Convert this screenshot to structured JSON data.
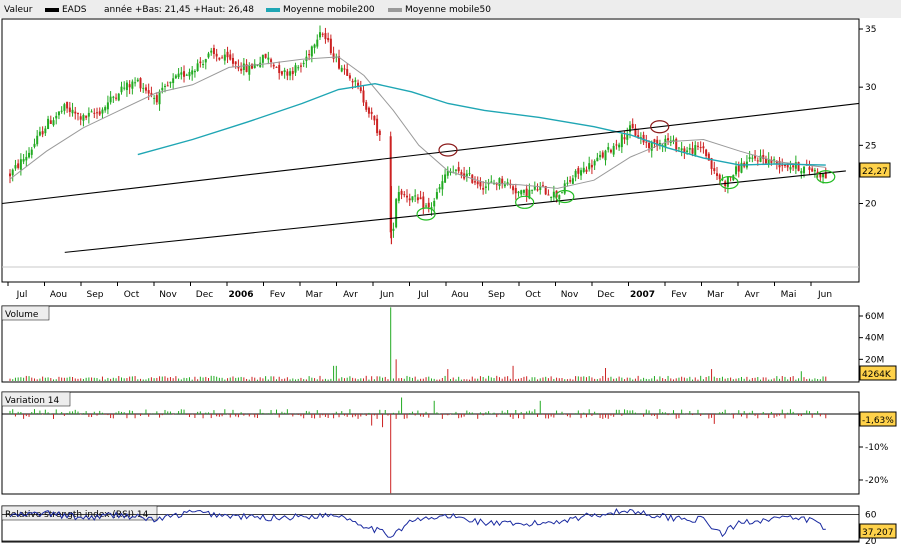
{
  "legend": {
    "title": "Valeur",
    "symbol": "EADS",
    "range_text": "année +Bas: 21,45 +Haut: 26,48",
    "ma200": "Moyenne mobile200",
    "ma50": "Moyenne mobile50"
  },
  "colors": {
    "up": "#22aa22",
    "down": "#cc2222",
    "ma200": "#1fa6b4",
    "ma50": "#9a9a9a",
    "channel": "#000000",
    "circle_red": "#8b1a1a",
    "circle_green": "#22bb22",
    "rsi": "#1a2aa0",
    "badge_fill": "#ffd24a"
  },
  "months": [
    {
      "label": "Jul",
      "bold": false
    },
    {
      "label": "Aou",
      "bold": false
    },
    {
      "label": "Sep",
      "bold": false
    },
    {
      "label": "Oct",
      "bold": false
    },
    {
      "label": "Nov",
      "bold": false
    },
    {
      "label": "Dec",
      "bold": false
    },
    {
      "label": "2006",
      "bold": true
    },
    {
      "label": "Fev",
      "bold": false
    },
    {
      "label": "Mar",
      "bold": false
    },
    {
      "label": "Avr",
      "bold": false
    },
    {
      "label": "Jun",
      "bold": false
    },
    {
      "label": "Jul",
      "bold": false
    },
    {
      "label": "Aou",
      "bold": false
    },
    {
      "label": "Sep",
      "bold": false
    },
    {
      "label": "Oct",
      "bold": false
    },
    {
      "label": "Nov",
      "bold": false
    },
    {
      "label": "Dec",
      "bold": false
    },
    {
      "label": "2007",
      "bold": true
    },
    {
      "label": "Fev",
      "bold": false
    },
    {
      "label": "Mar",
      "bold": false
    },
    {
      "label": "Avr",
      "bold": false
    },
    {
      "label": "Mai",
      "bold": false
    },
    {
      "label": "Jun",
      "bold": false
    }
  ],
  "chart_data": [
    {
      "type": "line",
      "title": "Valeur EADS",
      "series_names": [
        "EADS",
        "Moyenne mobile200",
        "Moyenne mobile50"
      ],
      "yticks": [
        "20",
        "25",
        "30",
        "35"
      ],
      "ylim": [
        15,
        36
      ],
      "last_value": "22,27",
      "price_anchors": [
        {
          "m": 0.0,
          "v": 22.5
        },
        {
          "m": 0.5,
          "v": 24.3
        },
        {
          "m": 1.0,
          "v": 26.8
        },
        {
          "m": 1.5,
          "v": 28.2
        },
        {
          "m": 2.0,
          "v": 27.3
        },
        {
          "m": 2.5,
          "v": 28.0
        },
        {
          "m": 3.0,
          "v": 29.8
        },
        {
          "m": 3.5,
          "v": 30.5
        },
        {
          "m": 4.0,
          "v": 29.0
        },
        {
          "m": 4.5,
          "v": 30.6
        },
        {
          "m": 5.0,
          "v": 31.6
        },
        {
          "m": 5.5,
          "v": 32.8
        },
        {
          "m": 6.0,
          "v": 32.3
        },
        {
          "m": 6.5,
          "v": 31.5
        },
        {
          "m": 7.0,
          "v": 32.6
        },
        {
          "m": 7.5,
          "v": 31.2
        },
        {
          "m": 8.0,
          "v": 31.8
        },
        {
          "m": 8.5,
          "v": 35.0
        },
        {
          "m": 9.0,
          "v": 32.0
        },
        {
          "m": 9.3,
          "v": 31.2
        },
        {
          "m": 9.6,
          "v": 29.5
        },
        {
          "m": 9.9,
          "v": 27.5
        },
        {
          "m": 10.2,
          "v": 25.3
        },
        {
          "m": 10.45,
          "v": 16.5
        },
        {
          "m": 10.6,
          "v": 21.2
        },
        {
          "m": 11.0,
          "v": 20.5
        },
        {
          "m": 11.5,
          "v": 19.5
        },
        {
          "m": 12.0,
          "v": 22.8
        },
        {
          "m": 12.5,
          "v": 22.4
        },
        {
          "m": 13.0,
          "v": 21.5
        },
        {
          "m": 13.5,
          "v": 22.0
        },
        {
          "m": 14.0,
          "v": 20.8
        },
        {
          "m": 14.5,
          "v": 21.3
        },
        {
          "m": 15.0,
          "v": 20.7
        },
        {
          "m": 15.5,
          "v": 22.5
        },
        {
          "m": 16.0,
          "v": 23.5
        },
        {
          "m": 16.5,
          "v": 24.8
        },
        {
          "m": 17.0,
          "v": 26.4
        },
        {
          "m": 17.5,
          "v": 25.0
        },
        {
          "m": 18.0,
          "v": 25.5
        },
        {
          "m": 18.5,
          "v": 24.5
        },
        {
          "m": 19.0,
          "v": 24.8
        },
        {
          "m": 19.3,
          "v": 22.5
        },
        {
          "m": 19.6,
          "v": 21.8
        },
        {
          "m": 20.0,
          "v": 23.2
        },
        {
          "m": 20.5,
          "v": 24.0
        },
        {
          "m": 21.0,
          "v": 23.5
        },
        {
          "m": 21.5,
          "v": 23.2
        },
        {
          "m": 22.0,
          "v": 22.9
        },
        {
          "m": 22.35,
          "v": 22.3
        }
      ],
      "ma200_points": [
        {
          "m": 3.5,
          "v": 24.2
        },
        {
          "m": 5.0,
          "v": 25.5
        },
        {
          "m": 6.5,
          "v": 27.0
        },
        {
          "m": 8.0,
          "v": 28.6
        },
        {
          "m": 9.0,
          "v": 29.8
        },
        {
          "m": 10.0,
          "v": 30.3
        },
        {
          "m": 11.0,
          "v": 29.6
        },
        {
          "m": 12.0,
          "v": 28.6
        },
        {
          "m": 13.0,
          "v": 28.0
        },
        {
          "m": 14.5,
          "v": 27.4
        },
        {
          "m": 16.0,
          "v": 26.6
        },
        {
          "m": 17.0,
          "v": 25.9
        },
        {
          "m": 18.0,
          "v": 24.8
        },
        {
          "m": 19.0,
          "v": 23.9
        },
        {
          "m": 20.0,
          "v": 23.3
        },
        {
          "m": 21.0,
          "v": 23.4
        },
        {
          "m": 22.35,
          "v": 23.3
        }
      ],
      "ma50_points": [
        {
          "m": 0.0,
          "v": 22.1
        },
        {
          "m": 1.0,
          "v": 24.5
        },
        {
          "m": 2.0,
          "v": 26.5
        },
        {
          "m": 3.0,
          "v": 28.0
        },
        {
          "m": 4.0,
          "v": 29.5
        },
        {
          "m": 5.0,
          "v": 30.2
        },
        {
          "m": 6.0,
          "v": 31.7
        },
        {
          "m": 7.0,
          "v": 32.0
        },
        {
          "m": 8.0,
          "v": 32.4
        },
        {
          "m": 9.0,
          "v": 32.6
        },
        {
          "m": 9.7,
          "v": 31.0
        },
        {
          "m": 10.5,
          "v": 28.0
        },
        {
          "m": 11.2,
          "v": 25.0
        },
        {
          "m": 12.0,
          "v": 22.8
        },
        {
          "m": 13.0,
          "v": 21.8
        },
        {
          "m": 14.0,
          "v": 21.6
        },
        {
          "m": 15.0,
          "v": 21.3
        },
        {
          "m": 16.0,
          "v": 22.0
        },
        {
          "m": 17.0,
          "v": 24.0
        },
        {
          "m": 18.0,
          "v": 25.3
        },
        {
          "m": 19.0,
          "v": 25.5
        },
        {
          "m": 20.0,
          "v": 24.5
        },
        {
          "m": 21.0,
          "v": 23.6
        },
        {
          "m": 22.35,
          "v": 23.1
        }
      ],
      "channel_lines": [
        [
          {
            "m": -1.0,
            "v": 20.0
          },
          {
            "m": 23.5,
            "v": 28.6
          }
        ],
        [
          {
            "m": 1.5,
            "v": 15.8
          },
          {
            "m": 22.9,
            "v": 22.8
          }
        ]
      ],
      "circles": [
        {
          "m": 12.0,
          "v": 24.6,
          "color": "red"
        },
        {
          "m": 17.8,
          "v": 26.6,
          "color": "red"
        },
        {
          "m": 11.4,
          "v": 19.1,
          "color": "green"
        },
        {
          "m": 14.1,
          "v": 20.1,
          "color": "green"
        },
        {
          "m": 15.2,
          "v": 20.6,
          "color": "green"
        },
        {
          "m": 19.7,
          "v": 21.8,
          "color": "green"
        },
        {
          "m": 22.35,
          "v": 22.3,
          "color": "green"
        }
      ]
    },
    {
      "type": "bar",
      "title": "Volume",
      "yticks": [
        "20M",
        "40M",
        "60M"
      ],
      "ylim": [
        0,
        70
      ],
      "last_value": "4264K",
      "spikes": [
        {
          "m": 10.45,
          "v": 68
        },
        {
          "m": 10.6,
          "v": 20
        },
        {
          "m": 8.9,
          "v": 14
        },
        {
          "m": 13.8,
          "v": 14
        },
        {
          "m": 16.3,
          "v": 12
        },
        {
          "m": 19.2,
          "v": 11
        },
        {
          "m": 21.7,
          "v": 9
        },
        {
          "m": 12.0,
          "v": 11
        }
      ],
      "base_level": 3
    },
    {
      "type": "bar",
      "title": "Variation 14",
      "yticks": [
        "-10%",
        "-20%"
      ],
      "ylim": [
        -25,
        8
      ],
      "last_value": "-1,63%",
      "spikes": [
        {
          "m": 10.45,
          "v": -24
        },
        {
          "m": 10.2,
          "v": -4
        },
        {
          "m": 9.9,
          "v": -3.5
        },
        {
          "m": 19.3,
          "v": -3
        },
        {
          "m": 10.7,
          "v": 5
        },
        {
          "m": 11.6,
          "v": 4
        },
        {
          "m": 14.5,
          "v": 4
        }
      ]
    },
    {
      "type": "line",
      "title": "Relative strength index (RSI) 14",
      "yticks": [
        "60",
        "20"
      ],
      "ylim": [
        20,
        80
      ],
      "last_value": "37,207",
      "rsi_anchors": [
        {
          "m": 0.0,
          "v": 58
        },
        {
          "m": 1.0,
          "v": 62
        },
        {
          "m": 2.0,
          "v": 55
        },
        {
          "m": 3.0,
          "v": 60
        },
        {
          "m": 4.0,
          "v": 52
        },
        {
          "m": 5.0,
          "v": 64
        },
        {
          "m": 6.0,
          "v": 58
        },
        {
          "m": 7.0,
          "v": 55
        },
        {
          "m": 8.0,
          "v": 57
        },
        {
          "m": 9.0,
          "v": 60
        },
        {
          "m": 9.8,
          "v": 42
        },
        {
          "m": 10.4,
          "v": 28
        },
        {
          "m": 11.0,
          "v": 50
        },
        {
          "m": 12.0,
          "v": 58
        },
        {
          "m": 13.0,
          "v": 48
        },
        {
          "m": 14.0,
          "v": 44
        },
        {
          "m": 15.0,
          "v": 50
        },
        {
          "m": 16.0,
          "v": 60
        },
        {
          "m": 17.0,
          "v": 66
        },
        {
          "m": 18.0,
          "v": 56
        },
        {
          "m": 19.0,
          "v": 52
        },
        {
          "m": 19.5,
          "v": 30
        },
        {
          "m": 20.0,
          "v": 48
        },
        {
          "m": 21.0,
          "v": 55
        },
        {
          "m": 22.0,
          "v": 52
        },
        {
          "m": 22.35,
          "v": 37
        }
      ]
    }
  ]
}
